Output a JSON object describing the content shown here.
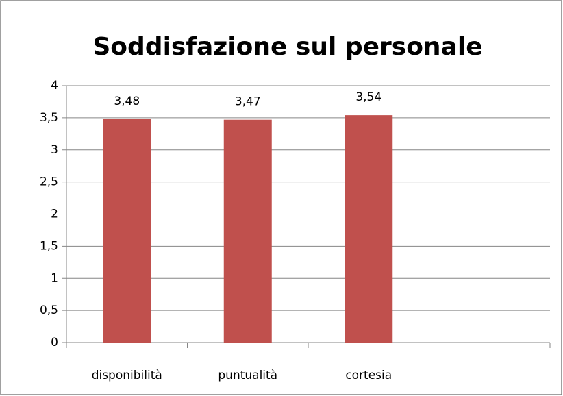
{
  "chart_data": {
    "type": "bar",
    "title": "Soddisfazione sul personale",
    "categories": [
      "disponibilità",
      "puntualità",
      "cortesia",
      null
    ],
    "values": [
      3.48,
      3.47,
      3.54,
      null
    ],
    "value_labels": [
      "3,48",
      "3,47",
      "3,54",
      null
    ],
    "color": "#c0504d",
    "ylim": [
      0,
      4
    ],
    "yticks": [
      0,
      {
        "value": 0.5,
        "label": "0,5"
      },
      1,
      {
        "value": 1.5,
        "label": "1,5"
      },
      2,
      {
        "value": 2.5,
        "label": "2,5"
      },
      3,
      {
        "value": 3.5,
        "label": "3,5"
      },
      4
    ],
    "grid": true
  }
}
